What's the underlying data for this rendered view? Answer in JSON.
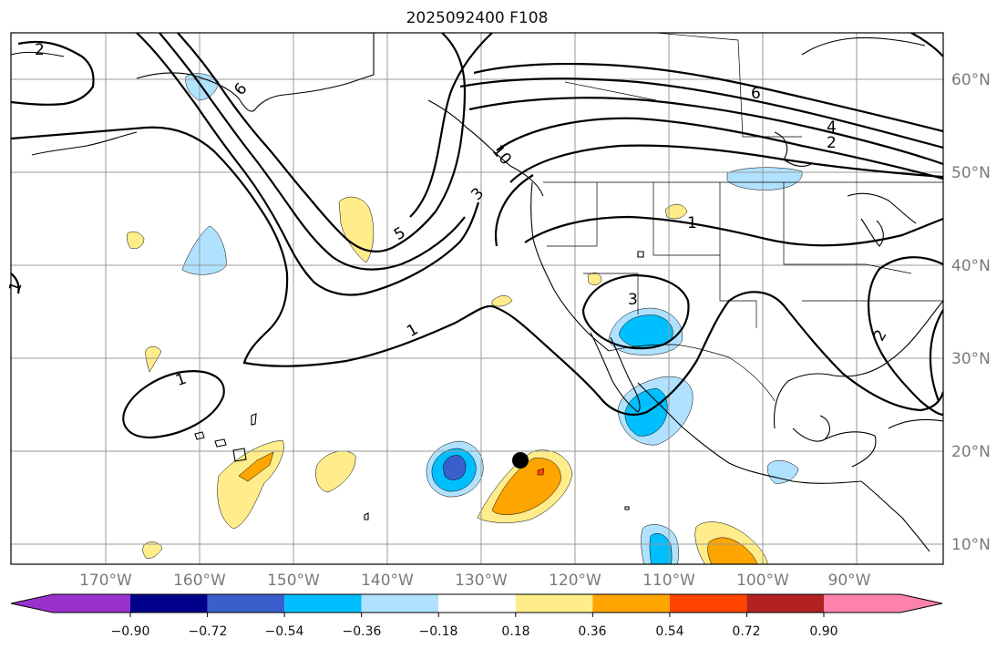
{
  "title": "2025092400 F108",
  "map": {
    "lon_labels": [
      "170°W",
      "160°W",
      "150°W",
      "140°W",
      "130°W",
      "120°W",
      "110°W",
      "100°W",
      "90°W"
    ],
    "lat_labels": [
      "60°N",
      "50°N",
      "40°N",
      "30°N",
      "20°N",
      "10°N"
    ],
    "contour_labels": [
      "2",
      "6",
      "6",
      "4",
      "2",
      "1",
      "10",
      "5",
      "3",
      "1",
      "1",
      "1",
      "3",
      "2"
    ],
    "storm_marker": "black-dot"
  },
  "colorbar": {
    "tick_labels": [
      "−0.90",
      "−0.72",
      "−0.54",
      "−0.36",
      "−0.18",
      "0.18",
      "0.36",
      "0.54",
      "0.72",
      "0.90"
    ],
    "colors": [
      "#9932cc",
      "#00008b",
      "#3a5fcd",
      "#00bfff",
      "#b0e2ff",
      "#ffffff",
      "#ffec8b",
      "#ffa500",
      "#ff4500",
      "#b22222",
      "#ff82ab"
    ]
  },
  "colors": {
    "positive_light": "#ffec8b",
    "positive_mid": "#ffa500",
    "positive_strong": "#ff4500",
    "negative_light": "#b0e2ff",
    "negative_mid": "#00bfff",
    "negative_strong": "#3a5fcd"
  }
}
